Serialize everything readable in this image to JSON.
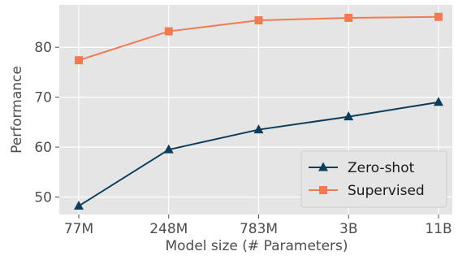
{
  "chart_data": {
    "type": "line",
    "xlabel": "Model size (# Parameters)",
    "ylabel": "Performance",
    "categories": [
      "77M",
      "248M",
      "783M",
      "3B",
      "11B"
    ],
    "yticks": [
      50,
      60,
      70,
      80
    ],
    "ylim": [
      46.5,
      88.5
    ],
    "grid": true,
    "legend_position": "lower-right",
    "series": [
      {
        "name": "Zero-shot",
        "values": [
          48.2,
          59.5,
          63.5,
          66.1,
          69.0
        ],
        "color": "#0d3d5c",
        "marker": "triangle"
      },
      {
        "name": "Supervised",
        "values": [
          77.4,
          83.2,
          85.4,
          85.9,
          86.1
        ],
        "color": "#f27a52",
        "marker": "square"
      }
    ]
  }
}
